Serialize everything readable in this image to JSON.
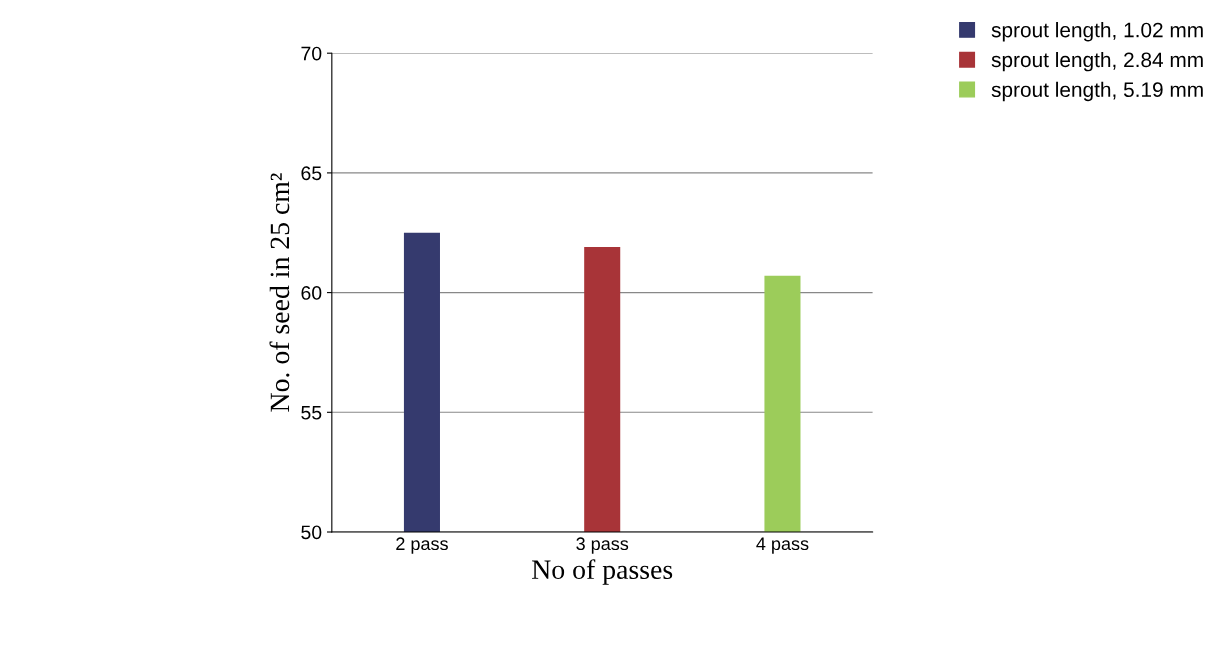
{
  "chart_data": {
    "type": "bar",
    "xlabel": "No of passes",
    "ylabel": "No. of seed in 25 cm²",
    "categories": [
      "2 pass",
      "3 pass",
      "4 pass"
    ],
    "series": [
      {
        "name": "sprout length, 1.02 mm",
        "color": "#353a6e",
        "values": [
          62.5,
          null,
          null
        ]
      },
      {
        "name": "sprout length, 2.84 mm",
        "color": "#a83438",
        "values": [
          null,
          61.9,
          null
        ]
      },
      {
        "name": "sprout length, 5.19 mm",
        "color": "#9ccc5a",
        "values": [
          null,
          null,
          60.7
        ]
      }
    ],
    "ylim": [
      50,
      70
    ],
    "yticks": [
      50,
      55,
      60,
      65,
      70
    ],
    "grid": "y",
    "legend": "top right"
  }
}
